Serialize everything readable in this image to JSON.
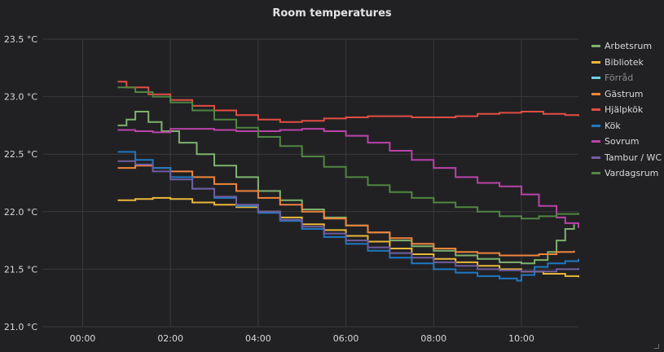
{
  "panel": {
    "title": "Room temperatures"
  },
  "chart_data": {
    "type": "line",
    "title": "Room temperatures",
    "x_unit": "time of day (hours)",
    "xlim": [
      -0.9,
      11.3
    ],
    "ylim": [
      21.0,
      23.5
    ],
    "x_ticks": [
      {
        "value": 0,
        "label": "00:00"
      },
      {
        "value": 2,
        "label": "02:00"
      },
      {
        "value": 4,
        "label": "04:00"
      },
      {
        "value": 6,
        "label": "06:00"
      },
      {
        "value": 8,
        "label": "08:00"
      },
      {
        "value": 10,
        "label": "10:00"
      }
    ],
    "y_ticks": [
      {
        "value": 21.0,
        "label": "21.0 °C"
      },
      {
        "value": 21.5,
        "label": "21.5 °C"
      },
      {
        "value": 22.0,
        "label": "22.0 °C"
      },
      {
        "value": 22.5,
        "label": "22.5 °C"
      },
      {
        "value": 23.0,
        "label": "23.0 °C"
      },
      {
        "value": 23.5,
        "label": "23.5 °C"
      }
    ],
    "grid": true,
    "legend_position": "right",
    "series": [
      {
        "name": "Arbetsrum",
        "color": "#7eb26d",
        "hidden": false,
        "points": [
          [
            0.8,
            22.75
          ],
          [
            1.0,
            22.8
          ],
          [
            1.2,
            22.87
          ],
          [
            1.5,
            22.78
          ],
          [
            1.8,
            22.7
          ],
          [
            2.2,
            22.6
          ],
          [
            2.6,
            22.5
          ],
          [
            3.0,
            22.4
          ],
          [
            3.5,
            22.3
          ],
          [
            4.0,
            22.18
          ],
          [
            4.5,
            22.1
          ],
          [
            5.0,
            22.02
          ],
          [
            5.5,
            21.95
          ],
          [
            6.0,
            21.88
          ],
          [
            6.5,
            21.82
          ],
          [
            7.0,
            21.75
          ],
          [
            7.5,
            21.7
          ],
          [
            8.0,
            21.66
          ],
          [
            8.5,
            21.62
          ],
          [
            9.0,
            21.59
          ],
          [
            9.5,
            21.56
          ],
          [
            10.0,
            21.55
          ],
          [
            10.3,
            21.58
          ],
          [
            10.6,
            21.65
          ],
          [
            10.8,
            21.75
          ],
          [
            11.0,
            21.85
          ],
          [
            11.2,
            21.89
          ]
        ]
      },
      {
        "name": "Bibliotek",
        "color": "#eab839",
        "hidden": false,
        "points": [
          [
            0.8,
            22.1
          ],
          [
            1.2,
            22.11
          ],
          [
            1.6,
            22.12
          ],
          [
            2.0,
            22.11
          ],
          [
            2.5,
            22.08
          ],
          [
            3.0,
            22.06
          ],
          [
            3.5,
            22.04
          ],
          [
            4.0,
            22.0
          ],
          [
            4.5,
            21.95
          ],
          [
            5.0,
            21.89
          ],
          [
            5.5,
            21.84
          ],
          [
            6.0,
            21.79
          ],
          [
            6.5,
            21.74
          ],
          [
            7.0,
            21.68
          ],
          [
            7.5,
            21.63
          ],
          [
            8.0,
            21.59
          ],
          [
            8.5,
            21.56
          ],
          [
            9.0,
            21.53
          ],
          [
            9.5,
            21.5
          ],
          [
            10.0,
            21.48
          ],
          [
            10.5,
            21.46
          ],
          [
            11.0,
            21.44
          ],
          [
            11.3,
            21.43
          ]
        ]
      },
      {
        "name": "Förråd",
        "color": "#6ed0e0",
        "hidden": true,
        "points": []
      },
      {
        "name": "Gästrum",
        "color": "#ef843c",
        "hidden": false,
        "points": [
          [
            0.8,
            22.38
          ],
          [
            1.2,
            22.4
          ],
          [
            1.6,
            22.38
          ],
          [
            2.0,
            22.35
          ],
          [
            2.5,
            22.3
          ],
          [
            3.0,
            22.24
          ],
          [
            3.5,
            22.18
          ],
          [
            4.0,
            22.12
          ],
          [
            4.5,
            22.06
          ],
          [
            5.0,
            22.0
          ],
          [
            5.5,
            21.94
          ],
          [
            6.0,
            21.88
          ],
          [
            6.5,
            21.82
          ],
          [
            7.0,
            21.77
          ],
          [
            7.5,
            21.72
          ],
          [
            8.0,
            21.68
          ],
          [
            8.5,
            21.65
          ],
          [
            9.0,
            21.64
          ],
          [
            9.5,
            21.62
          ],
          [
            10.0,
            21.62
          ],
          [
            10.4,
            21.63
          ],
          [
            10.8,
            21.65
          ],
          [
            11.2,
            21.66
          ]
        ]
      },
      {
        "name": "Hjälpkök",
        "color": "#e24d42",
        "hidden": false,
        "points": [
          [
            0.8,
            23.13
          ],
          [
            1.0,
            23.08
          ],
          [
            1.5,
            23.02
          ],
          [
            2.0,
            22.97
          ],
          [
            2.5,
            22.92
          ],
          [
            3.0,
            22.88
          ],
          [
            3.5,
            22.84
          ],
          [
            4.0,
            22.8
          ],
          [
            4.5,
            22.78
          ],
          [
            5.0,
            22.79
          ],
          [
            5.5,
            22.81
          ],
          [
            6.0,
            22.82
          ],
          [
            6.5,
            22.83
          ],
          [
            7.0,
            22.83
          ],
          [
            7.5,
            22.82
          ],
          [
            8.0,
            22.82
          ],
          [
            8.5,
            22.83
          ],
          [
            9.0,
            22.85
          ],
          [
            9.5,
            22.86
          ],
          [
            10.0,
            22.87
          ],
          [
            10.5,
            22.85
          ],
          [
            11.0,
            22.84
          ],
          [
            11.3,
            22.83
          ]
        ]
      },
      {
        "name": "Kök",
        "color": "#1f78c1",
        "hidden": false,
        "points": [
          [
            0.8,
            22.52
          ],
          [
            1.2,
            22.45
          ],
          [
            1.6,
            22.38
          ],
          [
            2.0,
            22.3
          ],
          [
            2.5,
            22.2
          ],
          [
            3.0,
            22.12
          ],
          [
            3.5,
            22.05
          ],
          [
            4.0,
            21.99
          ],
          [
            4.5,
            21.92
          ],
          [
            5.0,
            21.85
          ],
          [
            5.5,
            21.78
          ],
          [
            6.0,
            21.72
          ],
          [
            6.5,
            21.66
          ],
          [
            7.0,
            21.6
          ],
          [
            7.5,
            21.55
          ],
          [
            8.0,
            21.5
          ],
          [
            8.5,
            21.47
          ],
          [
            9.0,
            21.44
          ],
          [
            9.5,
            21.42
          ],
          [
            9.9,
            21.4
          ],
          [
            10.0,
            21.45
          ],
          [
            10.3,
            21.52
          ],
          [
            10.6,
            21.55
          ],
          [
            11.0,
            21.57
          ],
          [
            11.3,
            21.59
          ]
        ]
      },
      {
        "name": "Sovrum",
        "color": "#ba43a9",
        "hidden": false,
        "points": [
          [
            0.8,
            22.71
          ],
          [
            1.2,
            22.7
          ],
          [
            1.6,
            22.69
          ],
          [
            2.0,
            22.72
          ],
          [
            2.5,
            22.72
          ],
          [
            3.0,
            22.71
          ],
          [
            3.5,
            22.7
          ],
          [
            4.0,
            22.7
          ],
          [
            4.5,
            22.71
          ],
          [
            5.0,
            22.72
          ],
          [
            5.5,
            22.7
          ],
          [
            6.0,
            22.66
          ],
          [
            6.5,
            22.6
          ],
          [
            7.0,
            22.53
          ],
          [
            7.5,
            22.45
          ],
          [
            8.0,
            22.38
          ],
          [
            8.5,
            22.3
          ],
          [
            9.0,
            22.25
          ],
          [
            9.5,
            22.22
          ],
          [
            10.0,
            22.15
          ],
          [
            10.4,
            22.05
          ],
          [
            10.8,
            21.95
          ],
          [
            11.0,
            21.9
          ],
          [
            11.3,
            21.86
          ]
        ]
      },
      {
        "name": "Tambur / WC",
        "color": "#705da0",
        "hidden": false,
        "points": [
          [
            0.8,
            22.44
          ],
          [
            1.2,
            22.41
          ],
          [
            1.6,
            22.35
          ],
          [
            2.0,
            22.28
          ],
          [
            2.5,
            22.2
          ],
          [
            3.0,
            22.13
          ],
          [
            3.5,
            22.06
          ],
          [
            4.0,
            22.0
          ],
          [
            4.5,
            21.93
          ],
          [
            5.0,
            21.87
          ],
          [
            5.5,
            21.81
          ],
          [
            6.0,
            21.75
          ],
          [
            6.5,
            21.69
          ],
          [
            7.0,
            21.64
          ],
          [
            7.5,
            21.6
          ],
          [
            8.0,
            21.56
          ],
          [
            8.5,
            21.53
          ],
          [
            9.0,
            21.5
          ],
          [
            9.5,
            21.49
          ],
          [
            10.0,
            21.48
          ],
          [
            10.4,
            21.48
          ],
          [
            10.8,
            21.5
          ],
          [
            11.3,
            21.51
          ]
        ]
      },
      {
        "name": "Vardagsrum",
        "color": "#508642",
        "hidden": false,
        "points": [
          [
            0.8,
            23.08
          ],
          [
            1.2,
            23.04
          ],
          [
            1.6,
            23.0
          ],
          [
            2.0,
            22.95
          ],
          [
            2.5,
            22.88
          ],
          [
            3.0,
            22.8
          ],
          [
            3.5,
            22.73
          ],
          [
            4.0,
            22.65
          ],
          [
            4.5,
            22.57
          ],
          [
            5.0,
            22.48
          ],
          [
            5.5,
            22.39
          ],
          [
            6.0,
            22.3
          ],
          [
            6.5,
            22.23
          ],
          [
            7.0,
            22.17
          ],
          [
            7.5,
            22.12
          ],
          [
            8.0,
            22.08
          ],
          [
            8.5,
            22.04
          ],
          [
            9.0,
            22.0
          ],
          [
            9.5,
            21.96
          ],
          [
            10.0,
            21.94
          ],
          [
            10.4,
            21.96
          ],
          [
            10.8,
            21.98
          ],
          [
            11.3,
            21.99
          ]
        ]
      }
    ]
  }
}
